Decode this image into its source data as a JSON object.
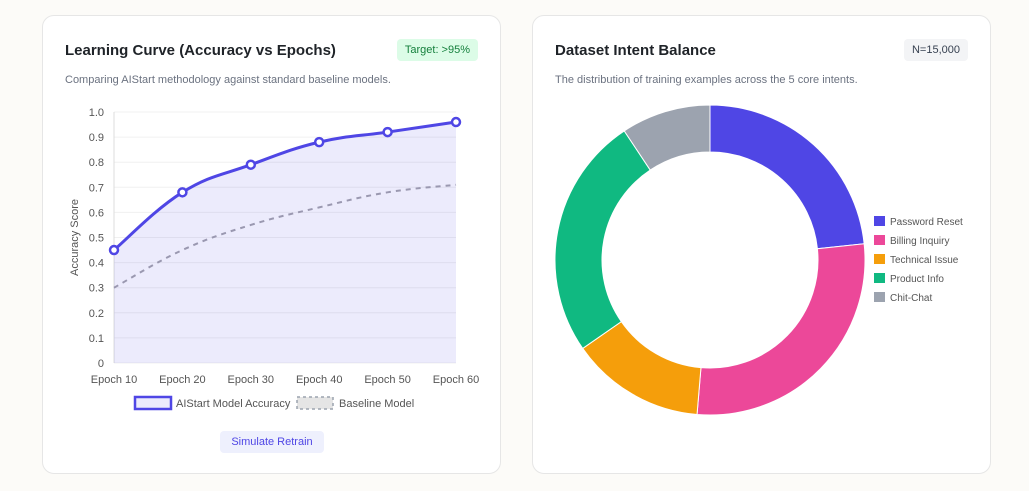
{
  "learning_card": {
    "title": "Learning Curve (Accuracy vs Epochs)",
    "badge": "Target: >95%",
    "subtitle": "Comparing AIStart methodology against standard baseline models.",
    "button": "Simulate Retrain"
  },
  "intent_card": {
    "title": "Dataset Intent Balance",
    "badge": "N=15,000",
    "subtitle": "The distribution of training examples across the 5 core intents."
  },
  "chart_data": [
    {
      "type": "line",
      "categories": [
        "Epoch 10",
        "Epoch 20",
        "Epoch 30",
        "Epoch 40",
        "Epoch 50",
        "Epoch 60"
      ],
      "ylabel": "Accuracy Score",
      "ylim": [
        0,
        1
      ],
      "yticks": [
        "0",
        "0.1",
        "0.2",
        "0.3",
        "0.4",
        "0.5",
        "0.6",
        "0.7",
        "0.8",
        "0.9",
        "1.0"
      ],
      "grid": true,
      "legend": "bottom",
      "series": [
        {
          "name": "AIStart Model Accuracy",
          "values": [
            0.45,
            0.68,
            0.79,
            0.88,
            0.92,
            0.96
          ],
          "color": "#4f46e5",
          "fill": true
        },
        {
          "name": "Baseline Model",
          "values": [
            0.3,
            0.45,
            0.55,
            0.62,
            0.68,
            0.71
          ],
          "color": "#9ca3af",
          "dashed": true
        }
      ]
    },
    {
      "type": "pie",
      "donut": true,
      "legend": "right",
      "labels": [
        "Password Reset",
        "Billing Inquiry",
        "Technical Issue",
        "Product Info",
        "Chit-Chat"
      ],
      "values": [
        3500,
        4200,
        2100,
        3800,
        1400
      ],
      "colors": [
        "#4f46e5",
        "#ec4899",
        "#f59e0b",
        "#10b981",
        "#9ca3af"
      ]
    }
  ]
}
